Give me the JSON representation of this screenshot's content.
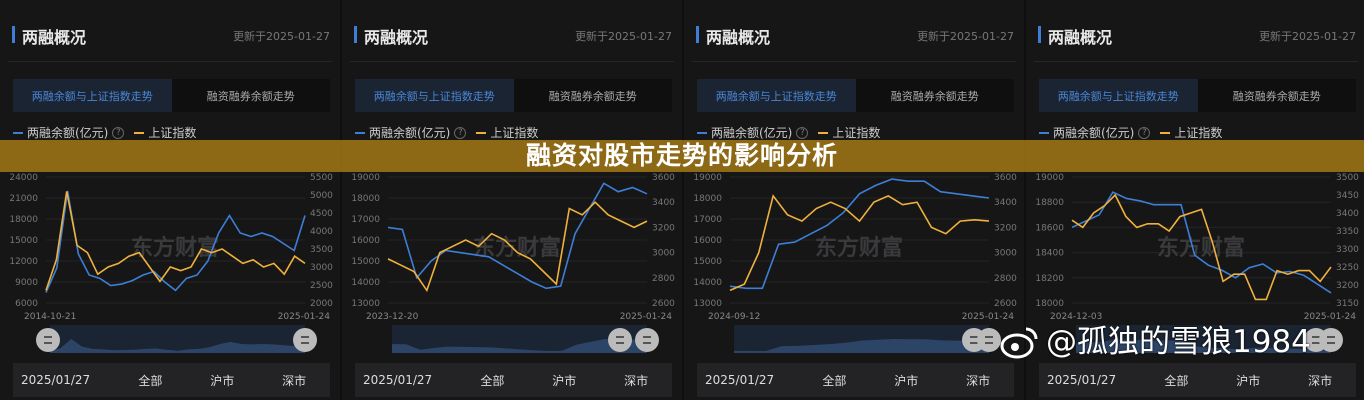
{
  "panel_common": {
    "title": "两融概况",
    "updated": "更新于2025-01-27",
    "tabs": [
      "两融余额与上证指数走势",
      "融资融券余额走势"
    ],
    "legend": [
      "两融余额(亿元)",
      "上证指数"
    ],
    "help_icon": "?",
    "bottom": [
      "2025/01/27",
      "全部",
      "沪市",
      "深市"
    ]
  },
  "colors": {
    "margin": "#3d7fd6",
    "index": "#f0b13c",
    "banner": "#b08014"
  },
  "watermark_logo": "东方财富",
  "banner_title": "融资对股市走势的影响分析",
  "credit": "@孤独的雪狼1984",
  "chart_data": [
    {
      "type": "line",
      "x_start": "2014-10-21",
      "x_end": "2025-01-24",
      "left_ticks": [
        "24000",
        "21000",
        "18000",
        "15000",
        "12000",
        "9000",
        "6000"
      ],
      "right_ticks": [
        "5500",
        "5000",
        "4500",
        "4000",
        "3500",
        "3000",
        "2500",
        "2000"
      ],
      "ylim_left": [
        6000,
        24000
      ],
      "ylim_right": [
        2000,
        5500
      ],
      "series": [
        {
          "name": "两融余额(亿元)",
          "axis": "left",
          "values": [
            7500,
            11000,
            22000,
            13000,
            10000,
            9500,
            8500,
            8700,
            9200,
            10000,
            10500,
            9000,
            7800,
            9500,
            10000,
            12000,
            16000,
            18500,
            16000,
            15500,
            16000,
            15500,
            14500,
            13500,
            18500
          ]
        },
        {
          "name": "上证指数",
          "axis": "right",
          "values": [
            2350,
            3200,
            5100,
            3600,
            3400,
            2800,
            3000,
            3100,
            3300,
            3400,
            3000,
            2600,
            3000,
            2900,
            3000,
            3500,
            3400,
            3500,
            3300,
            3100,
            3200,
            3000,
            3100,
            2800,
            3300,
            3100
          ]
        }
      ]
    },
    {
      "type": "line",
      "x_start": "2023-12-20",
      "x_end": "2025-01-24",
      "left_ticks": [
        "19000",
        "18000",
        "17000",
        "16000",
        "15000",
        "14000",
        "13000"
      ],
      "right_ticks": [
        "3600",
        "3400",
        "3200",
        "3000",
        "2800",
        "2600"
      ],
      "ylim_left": [
        13000,
        19000
      ],
      "ylim_right": [
        2600,
        3600
      ],
      "series": [
        {
          "name": "两融余额(亿元)",
          "axis": "left",
          "values": [
            16600,
            16500,
            14200,
            15000,
            15500,
            15400,
            15300,
            15200,
            14800,
            14400,
            14000,
            13700,
            13800,
            16300,
            17500,
            18700,
            18300,
            18500,
            18200
          ]
        },
        {
          "name": "上证指数",
          "axis": "right",
          "values": [
            2950,
            2900,
            2850,
            2700,
            3000,
            3050,
            3100,
            3050,
            3150,
            3100,
            3000,
            2950,
            2850,
            2750,
            3350,
            3300,
            3400,
            3300,
            3250,
            3200,
            3250
          ]
        }
      ]
    },
    {
      "type": "line",
      "x_start": "2024-09-12",
      "x_end": "2025-01-24",
      "left_ticks": [
        "19000",
        "18000",
        "17000",
        "16000",
        "15000",
        "14000",
        "13000"
      ],
      "right_ticks": [
        "3600",
        "3400",
        "3200",
        "3000",
        "2800",
        "2600"
      ],
      "ylim_left": [
        13000,
        19000
      ],
      "ylim_right": [
        2600,
        3600
      ],
      "series": [
        {
          "name": "两融余额(亿元)",
          "axis": "left",
          "values": [
            13800,
            13700,
            13700,
            15800,
            15900,
            16300,
            16700,
            17300,
            18200,
            18600,
            18900,
            18800,
            18800,
            18300,
            18200,
            18100,
            18000
          ]
        },
        {
          "name": "上证指数",
          "axis": "right",
          "values": [
            2700,
            2750,
            3000,
            3450,
            3300,
            3250,
            3350,
            3400,
            3350,
            3250,
            3400,
            3450,
            3380,
            3400,
            3200,
            3150,
            3250,
            3260,
            3250
          ]
        }
      ]
    },
    {
      "type": "line",
      "x_start": "2024-12-03",
      "x_end": "2025-01-24",
      "left_ticks": [
        "19000",
        "18800",
        "18600",
        "18400",
        "18200",
        "18000"
      ],
      "right_ticks": [
        "3500",
        "3450",
        "3400",
        "3350",
        "3300",
        "3250",
        "3200",
        "3150"
      ],
      "ylim_left": [
        18000,
        19000
      ],
      "ylim_right": [
        3150,
        3500
      ],
      "series": [
        {
          "name": "两融余额(亿元)",
          "axis": "left",
          "values": [
            18600,
            18650,
            18700,
            18880,
            18830,
            18810,
            18780,
            18780,
            18780,
            18380,
            18300,
            18260,
            18200,
            18280,
            18310,
            18240,
            18250,
            18220,
            18150,
            18080
          ]
        },
        {
          "name": "上证指数",
          "axis": "right",
          "values": [
            3380,
            3360,
            3400,
            3420,
            3450,
            3390,
            3360,
            3370,
            3370,
            3350,
            3390,
            3400,
            3410,
            3320,
            3210,
            3230,
            3230,
            3160,
            3160,
            3240,
            3230,
            3240,
            3240,
            3210,
            3250
          ]
        }
      ]
    }
  ]
}
